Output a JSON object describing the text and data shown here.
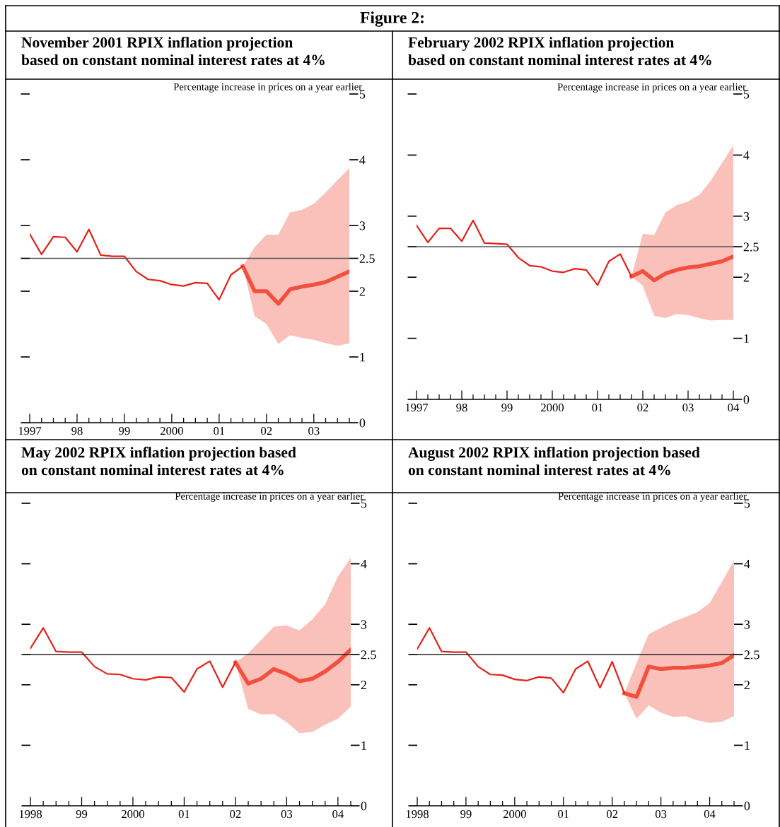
{
  "chart_data": [
    {
      "type": "line",
      "title": "November 2001 RPIX inflation projection\nbased on constant nominal interest rates at 4%",
      "ylabel": "Percentage increase in prices on a year earlier",
      "annotations": [
        "Figure 2:"
      ],
      "line_style": "solid",
      "xlim": [
        1997,
        2003.75
      ],
      "ylim": [
        0,
        5
      ],
      "yticks": [
        0,
        1,
        2,
        2.5,
        3,
        4,
        5
      ],
      "xticks": [
        {
          "value": 1997,
          "label": "1997"
        },
        {
          "value": 1997.25,
          "label": null
        },
        {
          "value": 1997.5,
          "label": null
        },
        {
          "value": 1997.75,
          "label": null
        },
        {
          "value": 1998,
          "label": "98"
        },
        {
          "value": 1998.25,
          "label": null
        },
        {
          "value": 1998.5,
          "label": null
        },
        {
          "value": 1998.75,
          "label": null
        },
        {
          "value": 1999,
          "label": "99"
        },
        {
          "value": 1999.25,
          "label": null
        },
        {
          "value": 1999.5,
          "label": null
        },
        {
          "value": 1999.75,
          "label": null
        },
        {
          "value": 2000,
          "label": "2000"
        },
        {
          "value": 2000.25,
          "label": null
        },
        {
          "value": 2000.5,
          "label": null
        },
        {
          "value": 2000.75,
          "label": null
        },
        {
          "value": 2001,
          "label": "01"
        },
        {
          "value": 2001.25,
          "label": null
        },
        {
          "value": 2001.5,
          "label": null
        },
        {
          "value": 2001.75,
          "label": null
        },
        {
          "value": 2002,
          "label": "02"
        },
        {
          "value": 2002.25,
          "label": null
        },
        {
          "value": 2002.5,
          "label": null
        },
        {
          "value": 2002.75,
          "label": null
        },
        {
          "value": 2003,
          "label": "03"
        },
        {
          "value": 2003.25,
          "label": null
        },
        {
          "value": 2003.5,
          "label": null
        },
        {
          "value": 2003.75,
          "label": null
        }
      ],
      "ref_lines": [
        {
          "axis": "y",
          "value": 2.5,
          "color": "#555555"
        }
      ],
      "series": [
        {
          "type": "line",
          "color": "#e32219",
          "x": [
            1997,
            1997.25,
            1997.5,
            1997.75,
            1998,
            1998.25,
            1998.5,
            1998.75,
            1999,
            1999.25,
            1999.5,
            1999.75,
            2000,
            2000.25,
            2000.5,
            2000.75,
            2001,
            2001.25,
            2001.5
          ],
          "values": [
            2.87,
            2.56,
            2.83,
            2.82,
            2.6,
            2.94,
            2.55,
            2.53,
            2.53,
            2.3,
            2.18,
            2.16,
            2.1,
            2.08,
            2.13,
            2.12,
            1.87,
            2.25,
            2.38
          ]
        },
        {
          "type": "line",
          "color": "#f03c28",
          "x": [
            2001.5,
            2001.75,
            2002,
            2002.25,
            2002.5,
            2002.75,
            2003,
            2003.25,
            2003.5,
            2003.75
          ],
          "values": [
            2.38,
            2.0,
            2.0,
            1.81,
            2.03,
            2.07,
            2.1,
            2.14,
            2.22,
            2.3
          ],
          "lower": [
            2.38,
            1.62,
            1.5,
            1.2,
            1.33,
            1.29,
            1.26,
            1.21,
            1.17,
            1.21
          ],
          "upper": [
            2.38,
            2.67,
            2.86,
            2.86,
            3.2,
            3.24,
            3.33,
            3.5,
            3.69,
            3.87
          ]
        }
      ]
    },
    {
      "type": "line",
      "title": "February 2002 RPIX inflation projection\nbased on constant nominal interest rates at 4%",
      "ylabel": "Percentage increase in prices on a year earlier",
      "line_style": "solid",
      "xlim": [
        1997,
        2004
      ],
      "ylim": [
        0,
        5
      ],
      "yticks": [
        0,
        1,
        2,
        2.5,
        3,
        4,
        5
      ],
      "xticks": [
        {
          "value": 1997,
          "label": "1997"
        },
        {
          "value": 1997.25,
          "label": null
        },
        {
          "value": 1997.5,
          "label": null
        },
        {
          "value": 1997.75,
          "label": null
        },
        {
          "value": 1998,
          "label": "98"
        },
        {
          "value": 1998.25,
          "label": null
        },
        {
          "value": 1998.5,
          "label": null
        },
        {
          "value": 1998.75,
          "label": null
        },
        {
          "value": 1999,
          "label": "99"
        },
        {
          "value": 1999.25,
          "label": null
        },
        {
          "value": 1999.5,
          "label": null
        },
        {
          "value": 1999.75,
          "label": null
        },
        {
          "value": 2000,
          "label": "2000"
        },
        {
          "value": 2000.25,
          "label": null
        },
        {
          "value": 2000.5,
          "label": null
        },
        {
          "value": 2000.75,
          "label": null
        },
        {
          "value": 2001,
          "label": "01"
        },
        {
          "value": 2001.25,
          "label": null
        },
        {
          "value": 2001.5,
          "label": null
        },
        {
          "value": 2001.75,
          "label": null
        },
        {
          "value": 2002,
          "label": "02"
        },
        {
          "value": 2002.25,
          "label": null
        },
        {
          "value": 2002.5,
          "label": null
        },
        {
          "value": 2002.75,
          "label": null
        },
        {
          "value": 2003,
          "label": "03"
        },
        {
          "value": 2003.25,
          "label": null
        },
        {
          "value": 2003.5,
          "label": null
        },
        {
          "value": 2003.75,
          "label": null
        },
        {
          "value": 2004,
          "label": "04"
        }
      ],
      "ref_lines": [
        {
          "axis": "y",
          "value": 2.5,
          "color": "#555555"
        }
      ],
      "series": [
        {
          "type": "line",
          "color": "#e32219",
          "x": [
            1997,
            1997.25,
            1997.5,
            1997.75,
            1998,
            1998.25,
            1998.5,
            1998.75,
            1999,
            1999.25,
            1999.5,
            1999.75,
            2000,
            2000.25,
            2000.5,
            2000.75,
            2001,
            2001.25,
            2001.5,
            2001.75
          ],
          "values": [
            2.85,
            2.57,
            2.8,
            2.8,
            2.59,
            2.93,
            2.56,
            2.55,
            2.54,
            2.32,
            2.19,
            2.17,
            2.1,
            2.08,
            2.14,
            2.12,
            1.87,
            2.26,
            2.38,
            2.01
          ]
        },
        {
          "type": "line",
          "color": "#f03c28",
          "x": [
            2001.75,
            2002,
            2002.25,
            2002.5,
            2002.75,
            2003,
            2003.25,
            2003.5,
            2003.75,
            2004
          ],
          "values": [
            2.01,
            2.1,
            1.95,
            2.06,
            2.12,
            2.16,
            2.18,
            2.22,
            2.26,
            2.34
          ],
          "lower": [
            2.01,
            1.86,
            1.37,
            1.33,
            1.4,
            1.38,
            1.33,
            1.29,
            1.3,
            1.3
          ],
          "upper": [
            2.01,
            2.71,
            2.69,
            3.06,
            3.18,
            3.24,
            3.35,
            3.58,
            3.87,
            4.16
          ]
        }
      ]
    },
    {
      "type": "line",
      "title": "May 2002 RPIX inflation projection based\non constant nominal interest rates at 4%",
      "ylabel": "Percentage increase in prices on a year earlier",
      "line_style": "solid",
      "xlim": [
        1998,
        2004.25
      ],
      "ylim": [
        0,
        5
      ],
      "yticks": [
        0,
        1,
        2,
        2.5,
        3,
        4,
        5
      ],
      "xticks": [
        {
          "value": 1998,
          "label": "1998"
        },
        {
          "value": 1998.25,
          "label": null
        },
        {
          "value": 1998.5,
          "label": null
        },
        {
          "value": 1998.75,
          "label": null
        },
        {
          "value": 1999,
          "label": "99"
        },
        {
          "value": 1999.25,
          "label": null
        },
        {
          "value": 1999.5,
          "label": null
        },
        {
          "value": 1999.75,
          "label": null
        },
        {
          "value": 2000,
          "label": "2000"
        },
        {
          "value": 2000.25,
          "label": null
        },
        {
          "value": 2000.5,
          "label": null
        },
        {
          "value": 2000.75,
          "label": null
        },
        {
          "value": 2001,
          "label": "01"
        },
        {
          "value": 2001.25,
          "label": null
        },
        {
          "value": 2001.5,
          "label": null
        },
        {
          "value": 2001.75,
          "label": null
        },
        {
          "value": 2002,
          "label": "02"
        },
        {
          "value": 2002.25,
          "label": null
        },
        {
          "value": 2002.5,
          "label": null
        },
        {
          "value": 2002.75,
          "label": null
        },
        {
          "value": 2003,
          "label": "03"
        },
        {
          "value": 2003.25,
          "label": null
        },
        {
          "value": 2003.5,
          "label": null
        },
        {
          "value": 2003.75,
          "label": null
        },
        {
          "value": 2004,
          "label": "04"
        },
        {
          "value": 2004.25,
          "label": null
        }
      ],
      "ref_lines": [
        {
          "axis": "y",
          "value": 2.5,
          "color": "#222222"
        }
      ],
      "series": [
        {
          "type": "line",
          "color": "#e32219",
          "x": [
            1998,
            1998.25,
            1998.5,
            1998.75,
            1999,
            1999.25,
            1999.5,
            1999.75,
            2000,
            2000.25,
            2000.5,
            2000.75,
            2001,
            2001.25,
            2001.5,
            2001.75,
            2002
          ],
          "values": [
            2.6,
            2.94,
            2.55,
            2.54,
            2.54,
            2.3,
            2.18,
            2.17,
            2.1,
            2.08,
            2.13,
            2.12,
            1.88,
            2.26,
            2.39,
            1.96,
            2.37
          ]
        },
        {
          "type": "line",
          "color": "#f03c28",
          "x": [
            2002,
            2002.25,
            2002.5,
            2002.75,
            2003,
            2003.25,
            2003.5,
            2003.75,
            2004,
            2004.25
          ],
          "values": [
            2.37,
            2.02,
            2.1,
            2.26,
            2.18,
            2.06,
            2.1,
            2.22,
            2.38,
            2.58
          ],
          "lower": [
            2.37,
            1.6,
            1.51,
            1.52,
            1.38,
            1.2,
            1.22,
            1.34,
            1.44,
            1.64
          ],
          "upper": [
            2.37,
            2.52,
            2.74,
            2.96,
            2.98,
            2.9,
            3.08,
            3.33,
            3.79,
            4.1
          ]
        }
      ]
    },
    {
      "type": "line",
      "title": "August 2002 RPIX inflation projection based\non constant nominal interest rates at 4%",
      "ylabel": "Percentage increase in prices on a year earlier",
      "line_style": "solid",
      "xlim": [
        1998,
        2004.5
      ],
      "ylim": [
        0,
        5
      ],
      "yticks": [
        0,
        1,
        2,
        2.5,
        3,
        4,
        5
      ],
      "xticks": [
        {
          "value": 1998,
          "label": "1998"
        },
        {
          "value": 1998.25,
          "label": null
        },
        {
          "value": 1998.5,
          "label": null
        },
        {
          "value": 1998.75,
          "label": null
        },
        {
          "value": 1999,
          "label": "99"
        },
        {
          "value": 1999.25,
          "label": null
        },
        {
          "value": 1999.5,
          "label": null
        },
        {
          "value": 1999.75,
          "label": null
        },
        {
          "value": 2000,
          "label": "2000"
        },
        {
          "value": 2000.25,
          "label": null
        },
        {
          "value": 2000.5,
          "label": null
        },
        {
          "value": 2000.75,
          "label": null
        },
        {
          "value": 2001,
          "label": "01"
        },
        {
          "value": 2001.25,
          "label": null
        },
        {
          "value": 2001.5,
          "label": null
        },
        {
          "value": 2001.75,
          "label": null
        },
        {
          "value": 2002,
          "label": "02"
        },
        {
          "value": 2002.25,
          "label": null
        },
        {
          "value": 2002.5,
          "label": null
        },
        {
          "value": 2002.75,
          "label": null
        },
        {
          "value": 2003,
          "label": "03"
        },
        {
          "value": 2003.25,
          "label": null
        },
        {
          "value": 2003.5,
          "label": null
        },
        {
          "value": 2003.75,
          "label": null
        },
        {
          "value": 2004,
          "label": "04"
        },
        {
          "value": 2004.25,
          "label": null
        },
        {
          "value": 2004.5,
          "label": null
        }
      ],
      "ref_lines": [
        {
          "axis": "y",
          "value": 2.5,
          "color": "#222222"
        }
      ],
      "series": [
        {
          "type": "line",
          "color": "#e32219",
          "x": [
            1998,
            1998.25,
            1998.5,
            1998.75,
            1999,
            1999.25,
            1999.5,
            1999.75,
            2000,
            2000.25,
            2000.5,
            2000.75,
            2001,
            2001.25,
            2001.5,
            2001.75,
            2002,
            2002.25
          ],
          "values": [
            2.59,
            2.94,
            2.55,
            2.54,
            2.54,
            2.3,
            2.17,
            2.16,
            2.09,
            2.07,
            2.13,
            2.11,
            1.87,
            2.26,
            2.39,
            1.95,
            2.38,
            1.86
          ]
        },
        {
          "type": "line",
          "color": "#f03c28",
          "x": [
            2002.25,
            2002.5,
            2002.75,
            2003,
            2003.25,
            2003.5,
            2003.75,
            2004,
            2004.25,
            2004.5
          ],
          "values": [
            1.86,
            1.8,
            2.3,
            2.26,
            2.28,
            2.28,
            2.3,
            2.32,
            2.36,
            2.49
          ],
          "lower": [
            1.86,
            1.44,
            1.66,
            1.54,
            1.47,
            1.48,
            1.41,
            1.37,
            1.39,
            1.48
          ],
          "upper": [
            1.86,
            2.36,
            2.84,
            2.94,
            3.04,
            3.12,
            3.2,
            3.35,
            3.7,
            4.05
          ]
        }
      ]
    }
  ]
}
